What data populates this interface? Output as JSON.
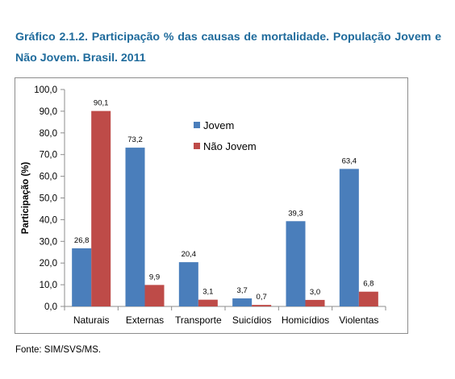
{
  "title": "Gráfico 2.1.2. Participação % das causas de mortalidade. População Jovem e Não Jovem. Brasil. 2011",
  "source": "Fonte: SIM/SVS/MS.",
  "chart_data": {
    "type": "bar",
    "categories": [
      "Naturais",
      "Externas",
      "Transporte",
      "Suicídios",
      "Homicídios",
      "Violentas"
    ],
    "series": [
      {
        "name": "Jovem",
        "color": "#4a7ebb",
        "values": [
          26.8,
          73.2,
          20.4,
          3.7,
          39.3,
          63.4
        ],
        "labels": [
          "26,8",
          "73,2",
          "20,4",
          "3,7",
          "39,3",
          "63,4"
        ]
      },
      {
        "name": "Não Jovem",
        "color": "#be4b48",
        "values": [
          90.1,
          9.9,
          3.1,
          0.7,
          3.0,
          6.8
        ],
        "labels": [
          "90,1",
          "9,9",
          "3,1",
          "0,7",
          "3,0",
          "6,8"
        ]
      }
    ],
    "ylabel": "Participação (%)",
    "xlabel": "",
    "ylim": [
      0,
      100
    ],
    "yticks": [
      0,
      10,
      20,
      30,
      40,
      50,
      60,
      70,
      80,
      90,
      100
    ],
    "ytick_labels": [
      "0,0",
      "10,0",
      "20,0",
      "30,0",
      "40,0",
      "50,0",
      "60,0",
      "70,0",
      "80,0",
      "90,0",
      "100,0"
    ],
    "grid": false,
    "legend": "top-center inside plot"
  }
}
